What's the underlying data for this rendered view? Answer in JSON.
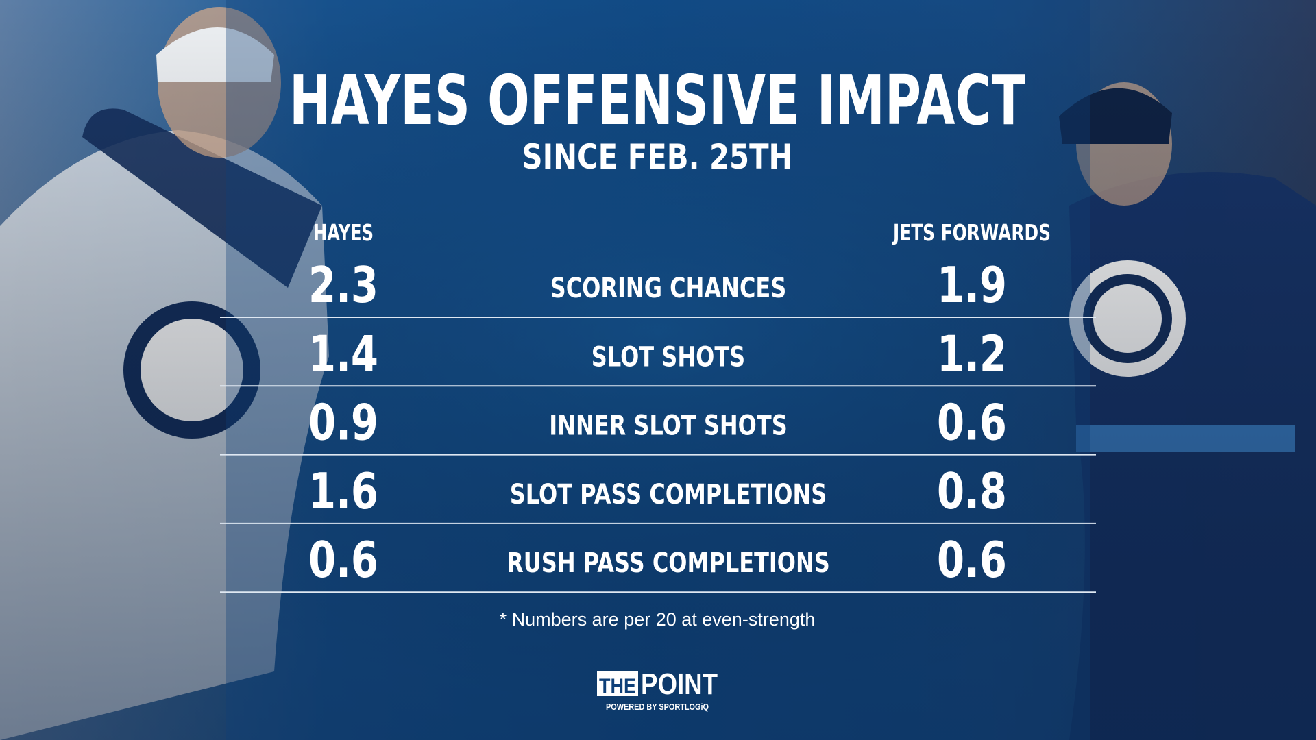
{
  "header": {
    "title": "HAYES OFFENSIVE IMPACT",
    "subtitle": "SINCE FEB. 25TH"
  },
  "table": {
    "columns": [
      "HAYES",
      "JETS FORWARDS"
    ],
    "rows": [
      {
        "label": "SCORING CHANCES",
        "hayes": 2.3,
        "jets": 1.9
      },
      {
        "label": "SLOT SHOTS",
        "hayes": 1.4,
        "jets": 1.2
      },
      {
        "label": "INNER SLOT SHOTS",
        "hayes": 0.9,
        "jets": 0.6
      },
      {
        "label": "SLOT PASS COMPLETIONS",
        "hayes": 1.6,
        "jets": 0.8
      },
      {
        "label": "RUSH PASS COMPLETIONS",
        "hayes": 0.6,
        "jets": 0.6
      }
    ]
  },
  "footnote": "* Numbers are per 20 at even-strength",
  "logo": {
    "the": "THE",
    "point": "POINT",
    "powered": "POWERED BY SPORTLOGiQ"
  }
}
